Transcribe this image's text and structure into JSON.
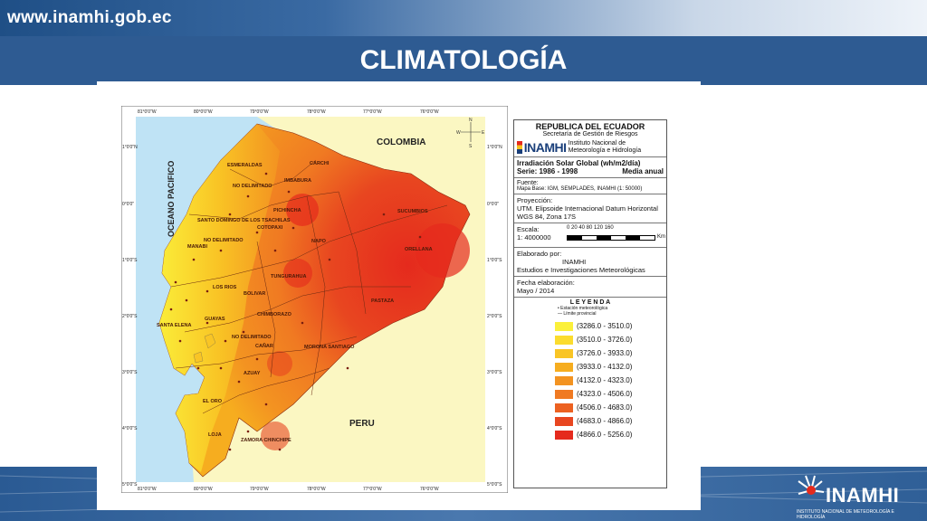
{
  "header": {
    "site_url": "www.inamhi.gob.ec",
    "title": "CLIMATOLOGÍA"
  },
  "colors": {
    "sea": "#bfe3f5",
    "neighbor_land": "#fbf7c2",
    "header_blue": "#2e5b92"
  },
  "map": {
    "neighbors": {
      "colombia": "COLOMBIA",
      "peru": "PERU",
      "ocean": "OCEANO PACIFICO"
    },
    "lon_labels": [
      "81°0'0\"W",
      "80°0'0\"W",
      "79°0'0\"W",
      "78°0'0\"W",
      "77°0'0\"W",
      "76°0'0\"W"
    ],
    "lat_labels": [
      "1°0'0\"N",
      "0°0'0\"",
      "1°0'0\"S",
      "2°0'0\"S",
      "3°0'0\"S",
      "4°0'0\"S",
      "5°0'0\"S"
    ],
    "provinces": [
      "ESMERALDAS",
      "CARCHI",
      "IMBABURA",
      "NO DELIMITADO",
      "PICHINCHA",
      "SUCUMBIOS",
      "SANTO DOMINGO DE LOS TSACHILAS",
      "NO DELIMITADO",
      "MANABI",
      "NAPO",
      "ORELLANA",
      "COTOPAXI",
      "TUNGURAHUA",
      "LOS RIOS",
      "BOLIVAR",
      "PASTAZA",
      "CHIMBORAZO",
      "SANTA ELENA",
      "GUAYAS",
      "NO DELIMITADO",
      "MORONA SANTIAGO",
      "CAÑAR",
      "AZUAY",
      "EL ORO",
      "LOJA",
      "ZAMORA CHINCHIPE"
    ]
  },
  "panel": {
    "country": "REPUBLICA DEL ECUADOR",
    "secretaria": "Secretaría de Gestión de Riesgos",
    "logo_word": "INAMHI",
    "institute": "Instituto Nacional de Meteorología e Hidrología",
    "variable": "Irradiación Solar Global (wh/m2/día)",
    "series": "Serie: 1986 - 1998",
    "period": "Media anual",
    "fuente_label": "Fuente:",
    "fuente": "Mapa Base: IGM, SEMPLADES, INAMHI (1: 50000)",
    "proyeccion_label": "Proyección:",
    "proyeccion": "UTM. Elipsoide Internacional Datum Horizontal WGS 84, Zona 17S",
    "escala_label": "Escala:",
    "escala": "1: 4000000",
    "scale_ticks": "0  20  40      80     120    160",
    "scale_unit": "Km",
    "elaborado_label": "Elaborado por:",
    "elaborado": "INAMHI",
    "elaborado_dept": "Estudios e Investigaciones Meteorológicas",
    "fecha_label": "Fecha elaboración:",
    "fecha": "Mayo / 2014",
    "leyenda_title": "L E Y E N D A",
    "leyenda_station": "Estación meteorológica",
    "leyenda_limit": "Límite provincial",
    "classes": [
      {
        "label": "(3286.0 - 3510.0)",
        "color": "#fbf03a"
      },
      {
        "label": "(3510.0 - 3726.0)",
        "color": "#fbdc2e"
      },
      {
        "label": "(3726.0 - 3933.0)",
        "color": "#f9c525"
      },
      {
        "label": "(3933.0 - 4132.0)",
        "color": "#f6ad1f"
      },
      {
        "label": "(4132.0 - 4323.0)",
        "color": "#f39321"
      },
      {
        "label": "(4323.0 - 4506.0)",
        "color": "#f07a22"
      },
      {
        "label": "(4506.0 - 4683.0)",
        "color": "#ec6121"
      },
      {
        "label": "(4683.0 - 4866.0)",
        "color": "#e84620"
      },
      {
        "label": "(4866.0 - 5256.0)",
        "color": "#e52a1d"
      }
    ]
  },
  "footer": {
    "logo_text": "INAMHI",
    "logo_sub": "INSTITUTO NACIONAL DE METEOROLOGÍA E HIDROLOGÍA"
  }
}
